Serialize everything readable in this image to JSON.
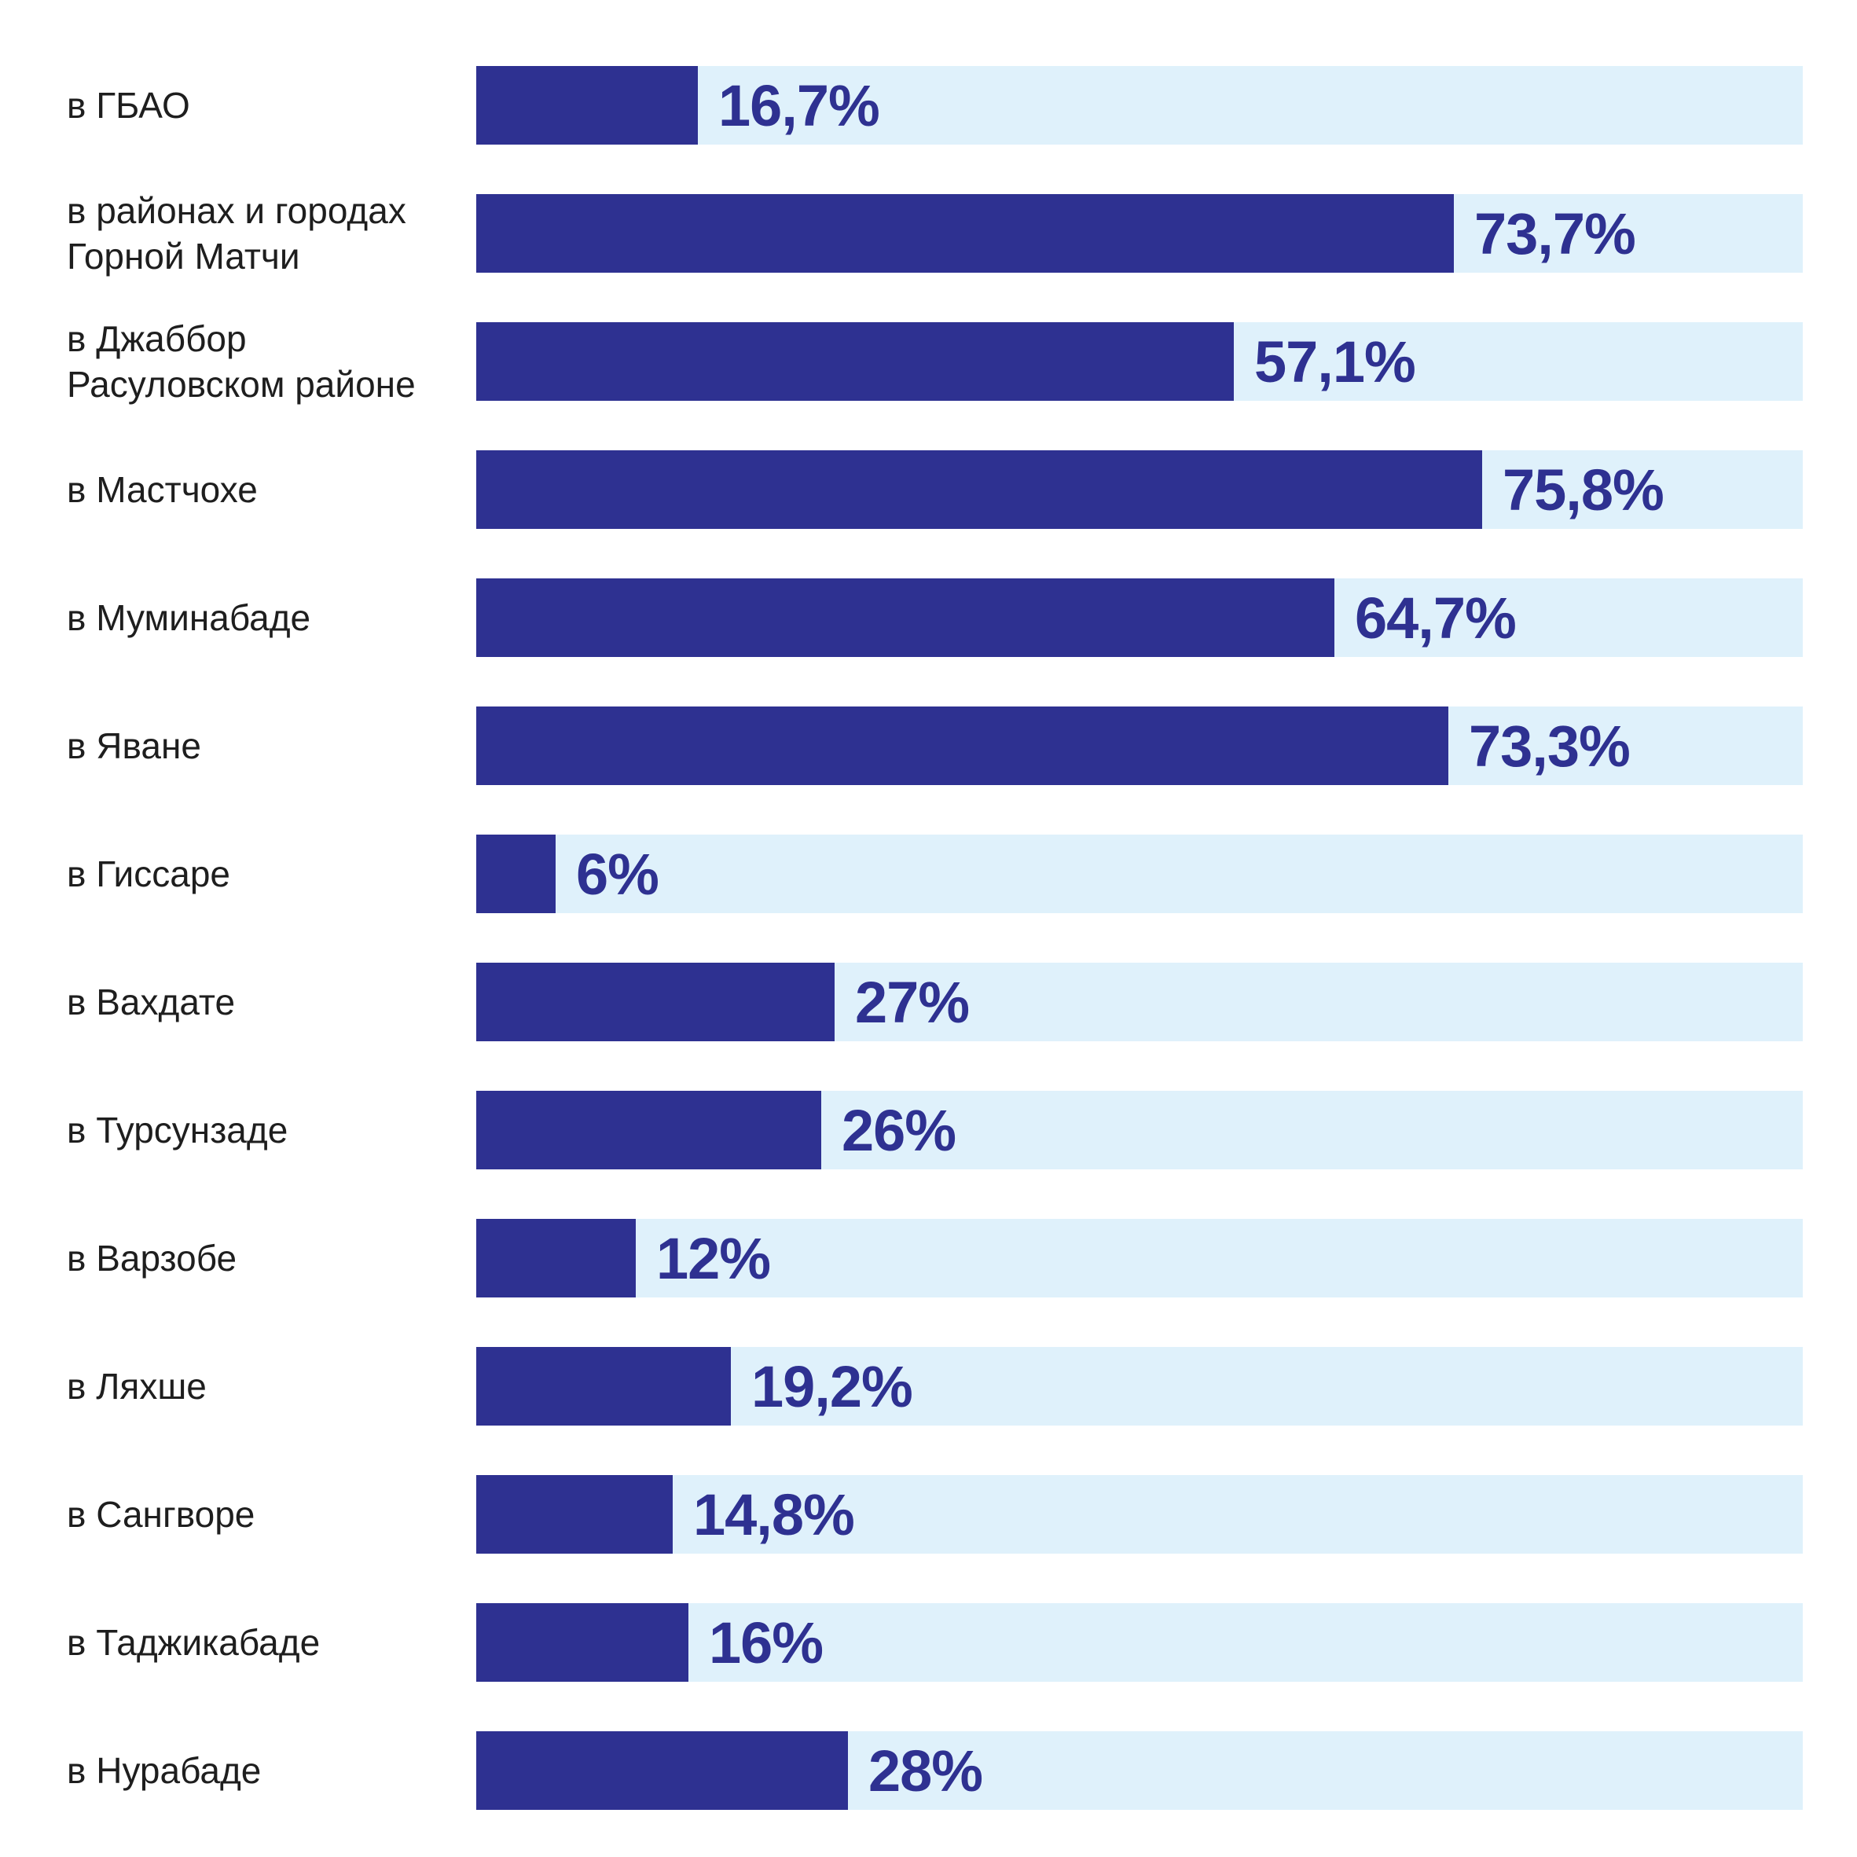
{
  "chart_data": {
    "type": "bar",
    "orientation": "horizontal",
    "title": "",
    "xlabel": "",
    "ylabel": "",
    "xlim": [
      0,
      100
    ],
    "colors": {
      "bar": "#2e3191",
      "track": "#dff1fb",
      "label": "#1e1e1e",
      "value": "#2e3191"
    },
    "categories": [
      "в ГБАО",
      "в районах и городах\nГорной Матчи",
      "в Джаббор\nРасуловском районе",
      "в Мастчохе",
      "в Муминабаде",
      "в Яване",
      "в Гиссаре",
      "в Вахдате",
      "в Турсунзаде",
      "в Варзобе",
      "в Ляхше",
      "в Сангворе",
      "в Таджикабаде",
      "в Нурабаде"
    ],
    "values": [
      16.7,
      73.7,
      57.1,
      75.8,
      64.7,
      73.3,
      6,
      27,
      26,
      12,
      19.2,
      14.8,
      16,
      28
    ],
    "value_labels": [
      "16,7%",
      "73,7%",
      "57,1%",
      "75,8%",
      "64,7%",
      "73,3%",
      "6%",
      "27%",
      "26%",
      "12%",
      "19,2%",
      "14,8%",
      "16%",
      "28%"
    ]
  }
}
